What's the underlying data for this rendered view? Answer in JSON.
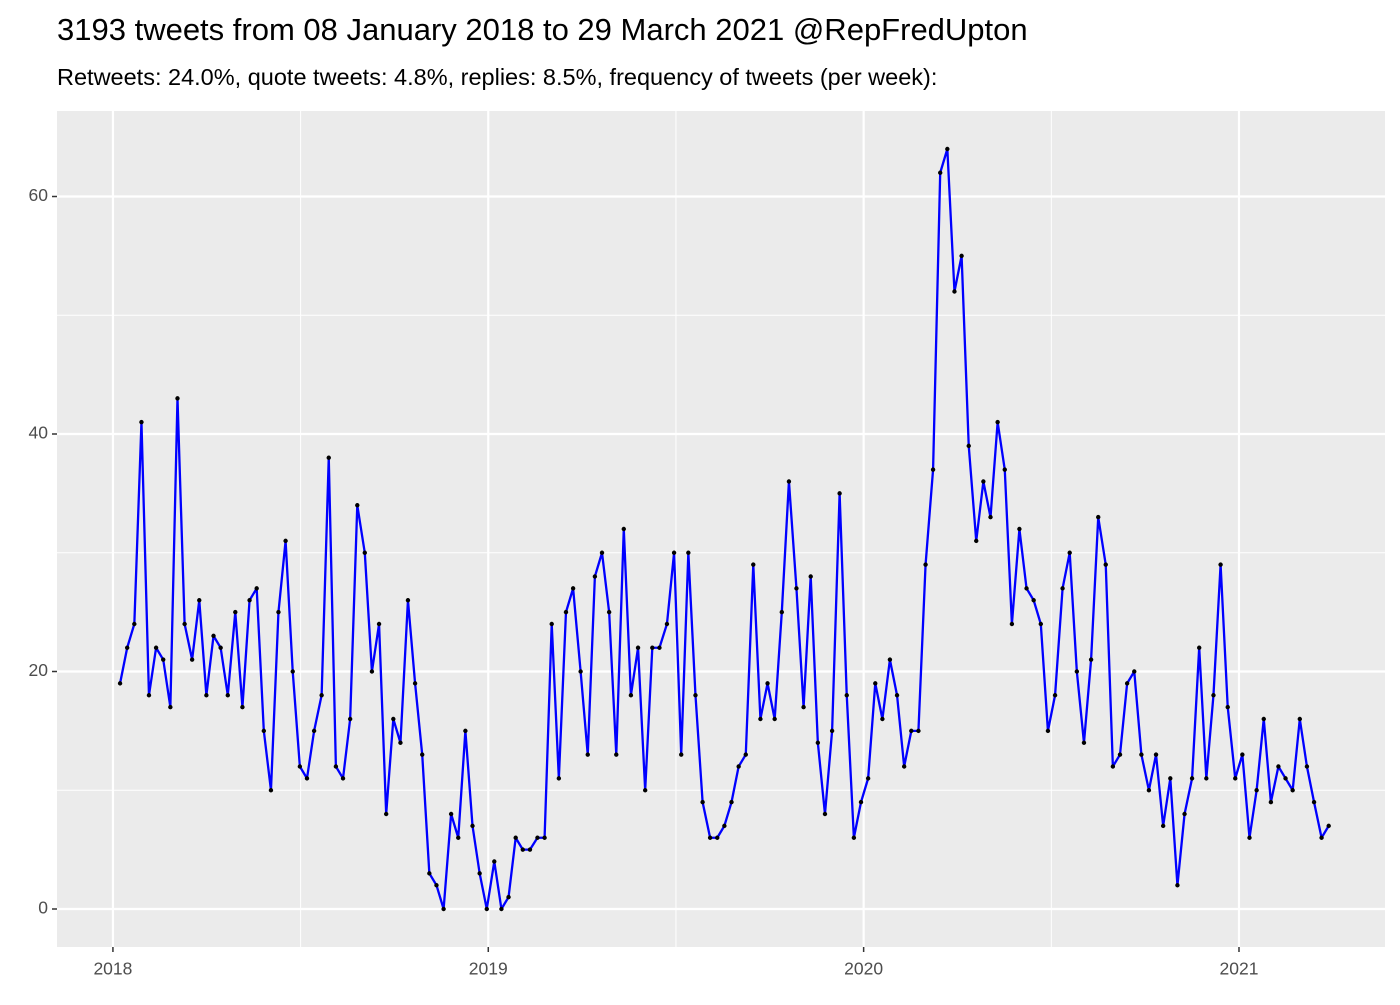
{
  "chart_data": {
    "type": "line",
    "title": "3193 tweets from 08 January 2018 to 29 March 2021 @RepFredUpton",
    "subtitle": "Retweets: 24.0%, quote tweets: 4.8%, replies: 8.5%, frequency of tweets (per week):",
    "x": [
      2018.019,
      2018.038,
      2018.057,
      2018.076,
      2018.096,
      2018.115,
      2018.134,
      2018.153,
      2018.172,
      2018.191,
      2018.211,
      2018.23,
      2018.249,
      2018.268,
      2018.287,
      2018.306,
      2018.326,
      2018.345,
      2018.364,
      2018.383,
      2018.402,
      2018.421,
      2018.441,
      2018.46,
      2018.479,
      2018.498,
      2018.517,
      2018.536,
      2018.556,
      2018.575,
      2018.594,
      2018.613,
      2018.632,
      2018.651,
      2018.671,
      2018.69,
      2018.709,
      2018.728,
      2018.747,
      2018.766,
      2018.786,
      2018.805,
      2018.824,
      2018.843,
      2018.862,
      2018.881,
      2018.901,
      2018.92,
      2018.939,
      2018.958,
      2018.977,
      2018.996,
      2019.016,
      2019.035,
      2019.054,
      2019.073,
      2019.092,
      2019.111,
      2019.131,
      2019.15,
      2019.169,
      2019.188,
      2019.207,
      2019.226,
      2019.246,
      2019.265,
      2019.284,
      2019.303,
      2019.322,
      2019.341,
      2019.361,
      2019.38,
      2019.399,
      2019.418,
      2019.437,
      2019.456,
      2019.476,
      2019.495,
      2019.514,
      2019.533,
      2019.552,
      2019.571,
      2019.591,
      2019.61,
      2019.629,
      2019.648,
      2019.667,
      2019.686,
      2019.706,
      2019.725,
      2019.744,
      2019.763,
      2019.782,
      2019.801,
      2019.821,
      2019.84,
      2019.859,
      2019.878,
      2019.897,
      2019.916,
      2019.936,
      2019.955,
      2019.974,
      2019.993,
      2020.012,
      2020.031,
      2020.05,
      2020.07,
      2020.089,
      2020.108,
      2020.127,
      2020.146,
      2020.165,
      2020.185,
      2020.204,
      2020.223,
      2020.242,
      2020.261,
      2020.28,
      2020.3,
      2020.319,
      2020.338,
      2020.357,
      2020.376,
      2020.395,
      2020.415,
      2020.434,
      2020.453,
      2020.472,
      2020.491,
      2020.51,
      2020.53,
      2020.549,
      2020.568,
      2020.587,
      2020.606,
      2020.625,
      2020.645,
      2020.664,
      2020.683,
      2020.702,
      2020.721,
      2020.74,
      2020.76,
      2020.779,
      2020.798,
      2020.817,
      2020.836,
      2020.855,
      2020.875,
      2020.894,
      2020.913,
      2020.932,
      2020.951,
      2020.97,
      2020.99,
      2021.009,
      2021.028,
      2021.047,
      2021.066,
      2021.085,
      2021.105,
      2021.124,
      2021.143,
      2021.162,
      2021.181,
      2021.2,
      2021.22,
      2021.239
    ],
    "series": [
      {
        "color": "#0000ff",
        "point_color": "#000000",
        "values": [
          19,
          22,
          24,
          41,
          18,
          22,
          21,
          17,
          43,
          24,
          21,
          26,
          18,
          23,
          22,
          18,
          25,
          17,
          26,
          27,
          15,
          10,
          25,
          31,
          20,
          12,
          11,
          15,
          18,
          38,
          12,
          11,
          16,
          34,
          30,
          20,
          24,
          8,
          16,
          14,
          26,
          19,
          13,
          3,
          2,
          0,
          8,
          6,
          15,
          7,
          3,
          0,
          4,
          0,
          1,
          6,
          5,
          5,
          6,
          6,
          24,
          11,
          25,
          27,
          20,
          13,
          28,
          30,
          25,
          13,
          32,
          18,
          22,
          10,
          22,
          22,
          24,
          30,
          13,
          30,
          18,
          9,
          6,
          6,
          7,
          9,
          12,
          13,
          29,
          16,
          19,
          16,
          25,
          36,
          27,
          17,
          28,
          14,
          8,
          15,
          35,
          18,
          6,
          9,
          11,
          19,
          16,
          21,
          18,
          12,
          15,
          15,
          29,
          37,
          62,
          64,
          52,
          55,
          39,
          31,
          36,
          33,
          41,
          37,
          24,
          32,
          27,
          26,
          24,
          15,
          18,
          27,
          30,
          20,
          14,
          21,
          33,
          29,
          12,
          13,
          19,
          20,
          13,
          10,
          13,
          7,
          11,
          2,
          8,
          11,
          22,
          11,
          18,
          29,
          17,
          11,
          13,
          6,
          10,
          16,
          9,
          12,
          11,
          10,
          16,
          12,
          9,
          6,
          7
        ]
      }
    ],
    "xlim": [
      2017.851,
      2021.389
    ],
    "xticks": [
      2018,
      2019,
      2020,
      2021
    ],
    "x_minor_grid": [
      2018.5,
      2019.5,
      2020.5
    ],
    "ylim": [
      -3.2,
      67.2
    ],
    "yticks": [
      0,
      20,
      40,
      60
    ],
    "y_minor_grid": [
      10,
      30,
      50
    ],
    "grid": true
  }
}
